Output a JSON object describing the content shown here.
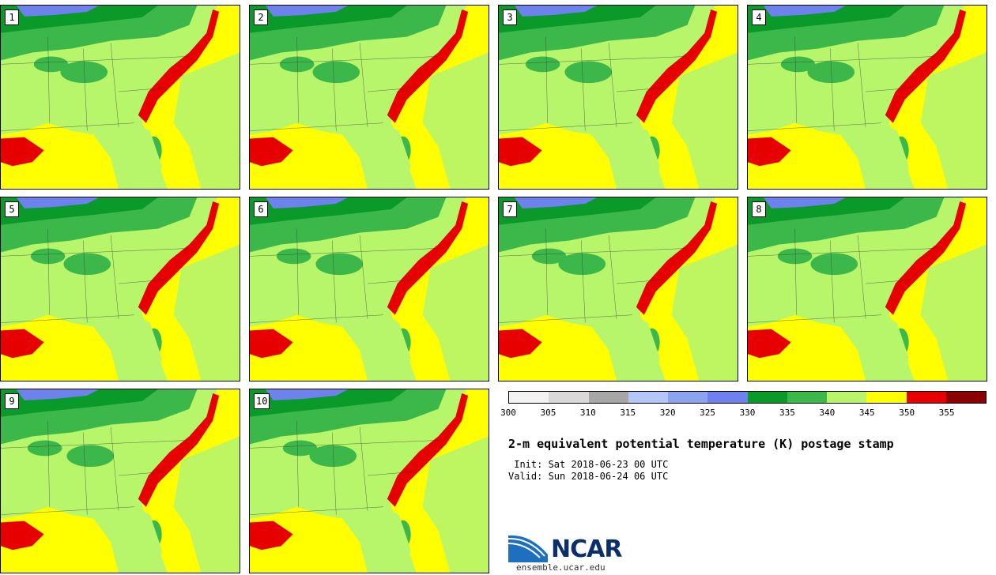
{
  "title": "2-m equivalent potential temperature (K) postage stamp",
  "init_text": " Init: Sat 2018-06-23 00 UTC",
  "valid_text": "Valid: Sun 2018-06-24 06 UTC",
  "logo_text": "NCAR",
  "logo_url": "ensemble.ucar.edu",
  "members": [
    "1",
    "2",
    "3",
    "4",
    "5",
    "6",
    "7",
    "8",
    "9",
    "10"
  ],
  "colorbar": {
    "ticks": [
      "300",
      "305",
      "310",
      "315",
      "320",
      "325",
      "330",
      "335",
      "340",
      "345",
      "350",
      "355"
    ],
    "colors": [
      "#f2f2f2",
      "#d9d9d9",
      "#a6a6a6",
      "#b3c6f7",
      "#8ba4f0",
      "#6e82ee",
      "#0a9a2a",
      "#3cb84a",
      "#b7f56b",
      "#ffff00",
      "#e60000",
      "#8b0000"
    ]
  },
  "map_colors": {
    "ocean_warm": "#ffff00",
    "land_mid": "#b7f56b",
    "land_cool": "#3cb84a",
    "land_cold": "#0a9a2a",
    "lake": "#6e82ee",
    "hot": "#e60000"
  }
}
